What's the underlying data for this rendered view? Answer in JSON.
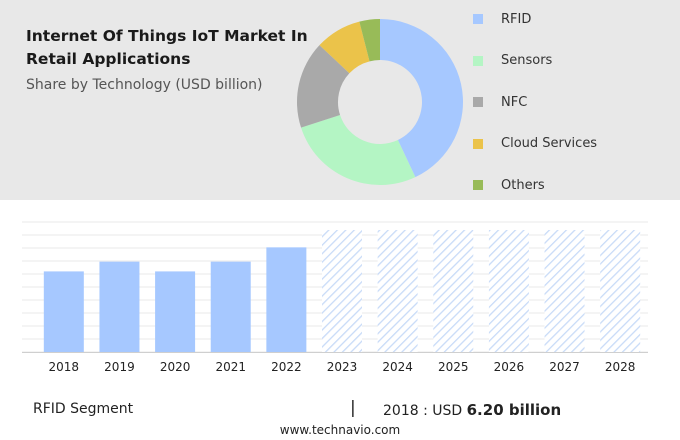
{
  "header": {
    "title": "Internet Of Things IoT Market In Retail Applications",
    "subtitle": "Share by Technology (USD billion)"
  },
  "chart_data": [
    {
      "type": "pie",
      "donut": true,
      "labels": [
        "RFID",
        "Sensors",
        "NFC",
        "Cloud Services",
        "Others"
      ],
      "values": [
        43,
        27,
        17,
        9,
        4
      ],
      "colors": [
        "#a6c8ff",
        "#b4f5c4",
        "#a9a9a9",
        "#ebc34a",
        "#98bb58"
      ],
      "legend": "right"
    },
    {
      "type": "bar",
      "categories": [
        "2018",
        "2019",
        "2020",
        "2021",
        "2022",
        "2023",
        "2024",
        "2025",
        "2026",
        "2027",
        "2028"
      ],
      "values": [
        6.2,
        6.95,
        6.2,
        6.95,
        8.05,
        null,
        null,
        null,
        null,
        null,
        null
      ],
      "forecast_from": "2023",
      "colors": {
        "actual": "#a6c8ff",
        "forecast_hatch": "#c8dbf8"
      },
      "grid": true
    }
  ],
  "footer": {
    "segment": "RFID Segment",
    "divider": "|",
    "value_prefix": "2018 : USD ",
    "value_strong": "6.20 billion",
    "watermark": "www.technavio.com"
  }
}
